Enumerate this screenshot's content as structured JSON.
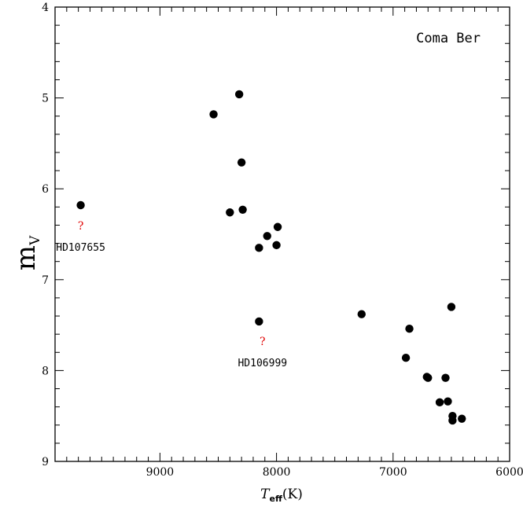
{
  "chart_data": {
    "type": "scatter",
    "title": "",
    "panel_label": "Coma Ber",
    "xlabel": {
      "main": "T",
      "sub": "eff",
      "unit": "(K)"
    },
    "ylabel": {
      "main": "m",
      "sub": "V"
    },
    "xlim": [
      9900,
      6000
    ],
    "ylim": [
      4,
      9
    ],
    "x_inverted": true,
    "y_inverted": true,
    "xticks": [
      9000,
      8000,
      7000,
      6000
    ],
    "yticks": [
      4,
      5,
      6,
      7,
      8,
      9
    ],
    "x_minor_step": 100,
    "y_minor_step": 0.2,
    "grid": false,
    "marker_color": "#000000",
    "annotation_color": "#e00000",
    "points": [
      {
        "x": 9680,
        "y": 6.18
      },
      {
        "x": 8540,
        "y": 5.18
      },
      {
        "x": 8320,
        "y": 4.96
      },
      {
        "x": 8300,
        "y": 5.71
      },
      {
        "x": 8400,
        "y": 6.26
      },
      {
        "x": 8290,
        "y": 6.23
      },
      {
        "x": 8080,
        "y": 6.52
      },
      {
        "x": 7990,
        "y": 6.42
      },
      {
        "x": 8150,
        "y": 6.65
      },
      {
        "x": 8000,
        "y": 6.62
      },
      {
        "x": 8150,
        "y": 7.46
      },
      {
        "x": 7270,
        "y": 7.38
      },
      {
        "x": 6500,
        "y": 7.3
      },
      {
        "x": 6860,
        "y": 7.54
      },
      {
        "x": 6890,
        "y": 7.86
      },
      {
        "x": 6710,
        "y": 8.07
      },
      {
        "x": 6700,
        "y": 8.08
      },
      {
        "x": 6550,
        "y": 8.08
      },
      {
        "x": 6530,
        "y": 8.34
      },
      {
        "x": 6600,
        "y": 8.35
      },
      {
        "x": 6490,
        "y": 8.5
      },
      {
        "x": 6490,
        "y": 8.55
      },
      {
        "x": 6410,
        "y": 8.53
      }
    ],
    "annotations": [
      {
        "label": "HD107655",
        "mark": "?",
        "x": 9680,
        "y": 6.45
      },
      {
        "label": "HD106999",
        "mark": "?",
        "x": 8120,
        "y": 7.72
      }
    ]
  }
}
